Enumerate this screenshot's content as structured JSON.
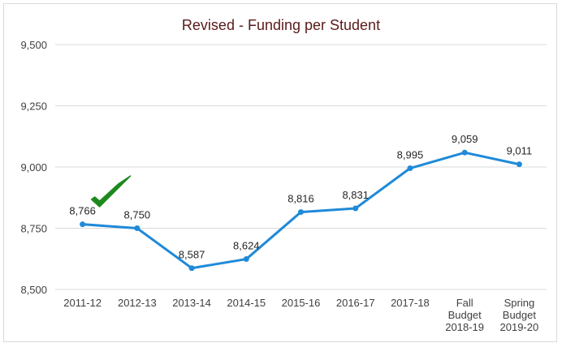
{
  "chart_data": {
    "type": "line",
    "title": "Revised - Funding per Student",
    "xlabel": "",
    "ylabel": "",
    "categories": [
      [
        "2011-12"
      ],
      [
        "2012-13"
      ],
      [
        "2013-14"
      ],
      [
        "2014-15"
      ],
      [
        "2015-16"
      ],
      [
        "2016-17"
      ],
      [
        "2017-18"
      ],
      [
        "Fall",
        "Budget",
        "2018-19"
      ],
      [
        "Spring",
        "Budget",
        "2019-20"
      ]
    ],
    "values": [
      8766,
      8750,
      8587,
      8624,
      8816,
      8831,
      8995,
      9059,
      9011
    ],
    "data_labels": [
      "8,766",
      "8,750",
      "8,587",
      "8,624",
      "8,816",
      "8,831",
      "8,995",
      "9,059",
      "9,011"
    ],
    "ylim": [
      8500,
      9500
    ],
    "yticks": [
      8500,
      8750,
      9000,
      9250,
      9500
    ],
    "ytick_labels": [
      "8,500",
      "8,750",
      "9,000",
      "9,250",
      "9,500"
    ],
    "grid": true,
    "legend": "none",
    "colors": {
      "line": "#1f8ad8",
      "grid": "#d9d9d9",
      "check": "#1e8a1e"
    },
    "annotations": [
      {
        "type": "checkmark-icon",
        "near_category": "2011-12"
      }
    ]
  }
}
